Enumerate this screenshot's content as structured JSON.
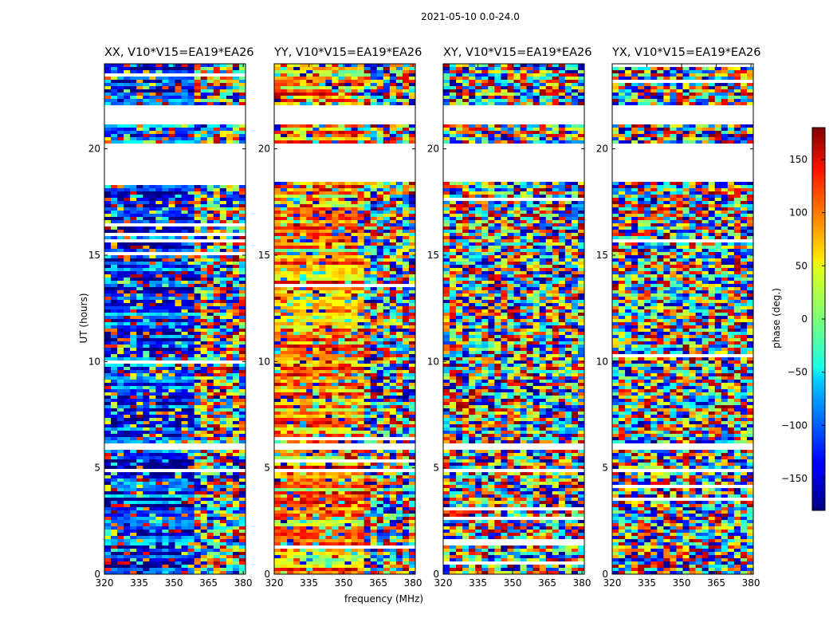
{
  "figure": {
    "suptitle": "2021-05-10 0.0-24.0"
  },
  "chart_data": {
    "type": "heatmap",
    "panels": [
      {
        "title": "XX, V10*V15=EA19*EA26"
      },
      {
        "title": "YY, V10*V15=EA19*EA26"
      },
      {
        "title": "XY, V10*V15=EA19*EA26"
      },
      {
        "title": "YX, V10*V15=EA19*EA26"
      }
    ],
    "xlabel": "frequency (MHz)",
    "ylabel": "UT (hours)",
    "xlim": [
      320,
      381
    ],
    "ylim": [
      0,
      24
    ],
    "xticks": [
      320,
      335,
      350,
      365,
      380
    ],
    "yticks": [
      0,
      5,
      10,
      15,
      20
    ],
    "colorbar": {
      "label": "phase (deg.)",
      "range": [
        -180,
        180
      ],
      "ticks": [
        150,
        100,
        50,
        0,
        -50,
        -100,
        -150
      ],
      "tick_labels": [
        "150",
        "100",
        "50",
        "0",
        "−50",
        "−100",
        "−150"
      ],
      "colormap": "jet"
    },
    "flagged_ut_ranges": [
      [
        20.2,
        18.5
      ],
      [
        22.0,
        21.2
      ],
      [
        5.0,
        4.8
      ],
      [
        6.1,
        5.9
      ]
    ],
    "grid": false
  }
}
